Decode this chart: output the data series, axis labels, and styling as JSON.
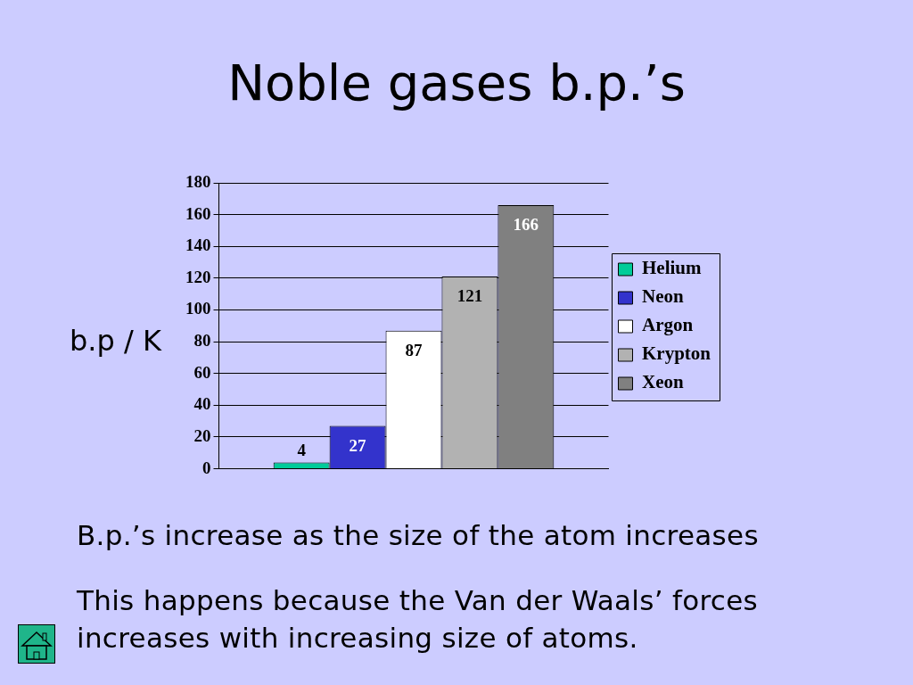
{
  "chart_data": {
    "type": "bar",
    "title": "Noble gases b.p.’s",
    "ylabel": "b.p / K",
    "categories": [
      null
    ],
    "series": [
      {
        "name": "Helium",
        "color": "#00cc99",
        "values": [
          4
        ]
      },
      {
        "name": "Neon",
        "color": "#3333cc",
        "values": [
          27
        ]
      },
      {
        "name": "Argon",
        "color": "#ffffff",
        "values": [
          87
        ]
      },
      {
        "name": "Krypton",
        "color": "#b2b2b2",
        "values": [
          121
        ]
      },
      {
        "name": "Xeon",
        "color": "#808080",
        "values": [
          166
        ]
      }
    ],
    "ylim": [
      0,
      180
    ],
    "yticks": [
      0,
      20,
      40,
      60,
      80,
      100,
      120,
      140,
      160,
      180
    ],
    "grid": "y",
    "legend": "right",
    "data_labels": true,
    "annotations": [
      "B.p.’s increase as the size of the atom increases",
      "This happens because the Van der Waals’ forces increases with increasing size of atoms."
    ]
  }
}
